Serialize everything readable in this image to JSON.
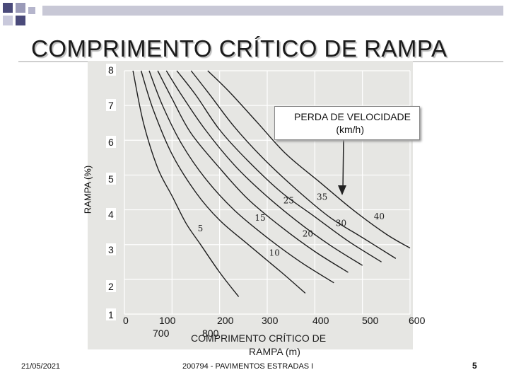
{
  "slide": {
    "title": "COMPRIMENTO CRÍTICO DE RAMPA",
    "footer_date": "21/05/2021",
    "footer_course": "200794 - PAVIMENTOS ESTRADAS I",
    "page_number": "5",
    "accent_color": "#4a4a7a"
  },
  "chart_data": {
    "type": "line",
    "ylabel": "RAMPA (%)",
    "xlabel_line1": "COMPRIMENTO CRÍTICO DE",
    "xlabel_line2": "RAMPA (m)",
    "callout_line1": "PERDA DE VELOCIDADE",
    "callout_line2": "(km/h)",
    "y_ticks": [
      "8",
      "7",
      "6",
      "5",
      "4",
      "3",
      "2",
      "1"
    ],
    "x_ticks": [
      "0",
      "100",
      "200",
      "300",
      "400",
      "500",
      "600"
    ],
    "x_ticks_secondary": [
      "700",
      "800"
    ],
    "xlim": [
      0,
      600
    ],
    "ylim": [
      1,
      8
    ],
    "grid": true,
    "series": [
      {
        "name": "5",
        "x": [
          18,
          40,
          70,
          100,
          130,
          160,
          200,
          240
        ],
        "y": [
          8,
          6.5,
          5.2,
          4.4,
          3.6,
          3.0,
          2.2,
          1.5
        ]
      },
      {
        "name": "10",
        "x": [
          35,
          60,
          100,
          150,
          200,
          260,
          330,
          380
        ],
        "y": [
          8,
          6.9,
          5.6,
          4.5,
          3.7,
          3.0,
          2.2,
          1.6
        ]
      },
      {
        "name": "15",
        "x": [
          52,
          80,
          120,
          170,
          230,
          300,
          370,
          440
        ],
        "y": [
          8,
          7.0,
          5.9,
          4.9,
          4.0,
          3.2,
          2.5,
          1.9
        ]
      },
      {
        "name": "20",
        "x": [
          70,
          100,
          140,
          200,
          260,
          330,
          400,
          470
        ],
        "y": [
          8,
          7.2,
          6.2,
          5.2,
          4.3,
          3.5,
          2.8,
          2.2
        ]
      },
      {
        "name": "25",
        "x": [
          88,
          120,
          170,
          230,
          290,
          360,
          430,
          500
        ],
        "y": [
          8,
          7.3,
          6.3,
          5.3,
          4.5,
          3.7,
          3.0,
          2.4
        ]
      },
      {
        "name": "30",
        "x": [
          110,
          150,
          200,
          260,
          330,
          400,
          470,
          540
        ],
        "y": [
          8,
          7.3,
          6.3,
          5.4,
          4.5,
          3.8,
          3.1,
          2.5
        ]
      },
      {
        "name": "35",
        "x": [
          140,
          180,
          230,
          290,
          360,
          430,
          500,
          570
        ],
        "y": [
          8,
          7.3,
          6.4,
          5.5,
          4.6,
          3.8,
          3.2,
          2.6
        ]
      },
      {
        "name": "40",
        "x": [
          175,
          220,
          280,
          340,
          410,
          480,
          550,
          600
        ],
        "y": [
          8,
          7.4,
          6.5,
          5.6,
          4.8,
          4.0,
          3.3,
          2.9
        ]
      }
    ]
  }
}
